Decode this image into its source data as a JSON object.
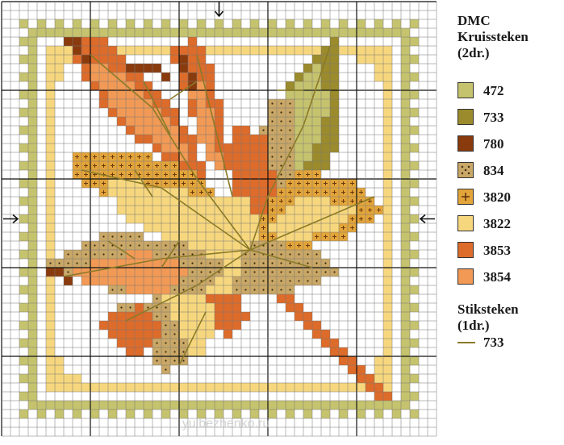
{
  "legend": {
    "title_line1": "DMC",
    "title_line2": "Kruissteken",
    "title_line3": "(2dr.)",
    "items": [
      {
        "code": "472",
        "color": "#c6c36e",
        "symbol": ""
      },
      {
        "code": "733",
        "color": "#9b8b2c",
        "symbol": ""
      },
      {
        "code": "780",
        "color": "#8a3b0e",
        "symbol": ""
      },
      {
        "code": "834",
        "color": "#c9a766",
        "symbol": "dot"
      },
      {
        "code": "3820",
        "color": "#e3a53a",
        "symbol": "plus"
      },
      {
        "code": "3822",
        "color": "#f7d77e",
        "symbol": ""
      },
      {
        "code": "3853",
        "color": "#dd6b2a",
        "symbol": ""
      },
      {
        "code": "3854",
        "color": "#f29a55",
        "symbol": ""
      }
    ],
    "backstitch_line1": "Stiksteken",
    "backstitch_line2": "(1dr.)",
    "backstitch_code": "733",
    "backstitch_color": "#8a7a28"
  },
  "watermark": "yulbezhenko.ru",
  "grid": {
    "cols": 49,
    "rows": 49
  }
}
